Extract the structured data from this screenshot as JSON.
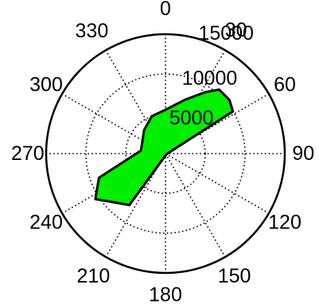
{
  "chart_data": {
    "type": "polar-area",
    "title": "",
    "angle_unit": "degrees",
    "angle_zero": "top",
    "angle_direction": "clockwise",
    "angle_ticks": [
      "0",
      "30",
      "60",
      "90",
      "120",
      "150",
      "180",
      "210",
      "240",
      "270",
      "300",
      "330"
    ],
    "r_max": 15000,
    "r_ticks": [
      "5000",
      "10000",
      "15000"
    ],
    "grid": true,
    "series": [
      {
        "fill_color": "#00ee00",
        "edge_color": "#000000",
        "points": [
          {
            "angle": 40,
            "r": 10500
          },
          {
            "angle": 50,
            "r": 10500
          },
          {
            "angle": 58,
            "r": 10000
          },
          {
            "angle": 90,
            "r": 250
          },
          {
            "angle": 180,
            "r": 250
          },
          {
            "angle": 215,
            "r": 7900
          },
          {
            "angle": 237,
            "r": 10500
          },
          {
            "angle": 250,
            "r": 8900
          },
          {
            "angle": 277,
            "r": 3100
          },
          {
            "angle": 318,
            "r": 4000
          },
          {
            "angle": 340,
            "r": 5000
          },
          {
            "angle": 0,
            "r": 5500
          },
          {
            "angle": 20,
            "r": 7200
          },
          {
            "angle": 33,
            "r": 9200
          }
        ]
      }
    ]
  }
}
